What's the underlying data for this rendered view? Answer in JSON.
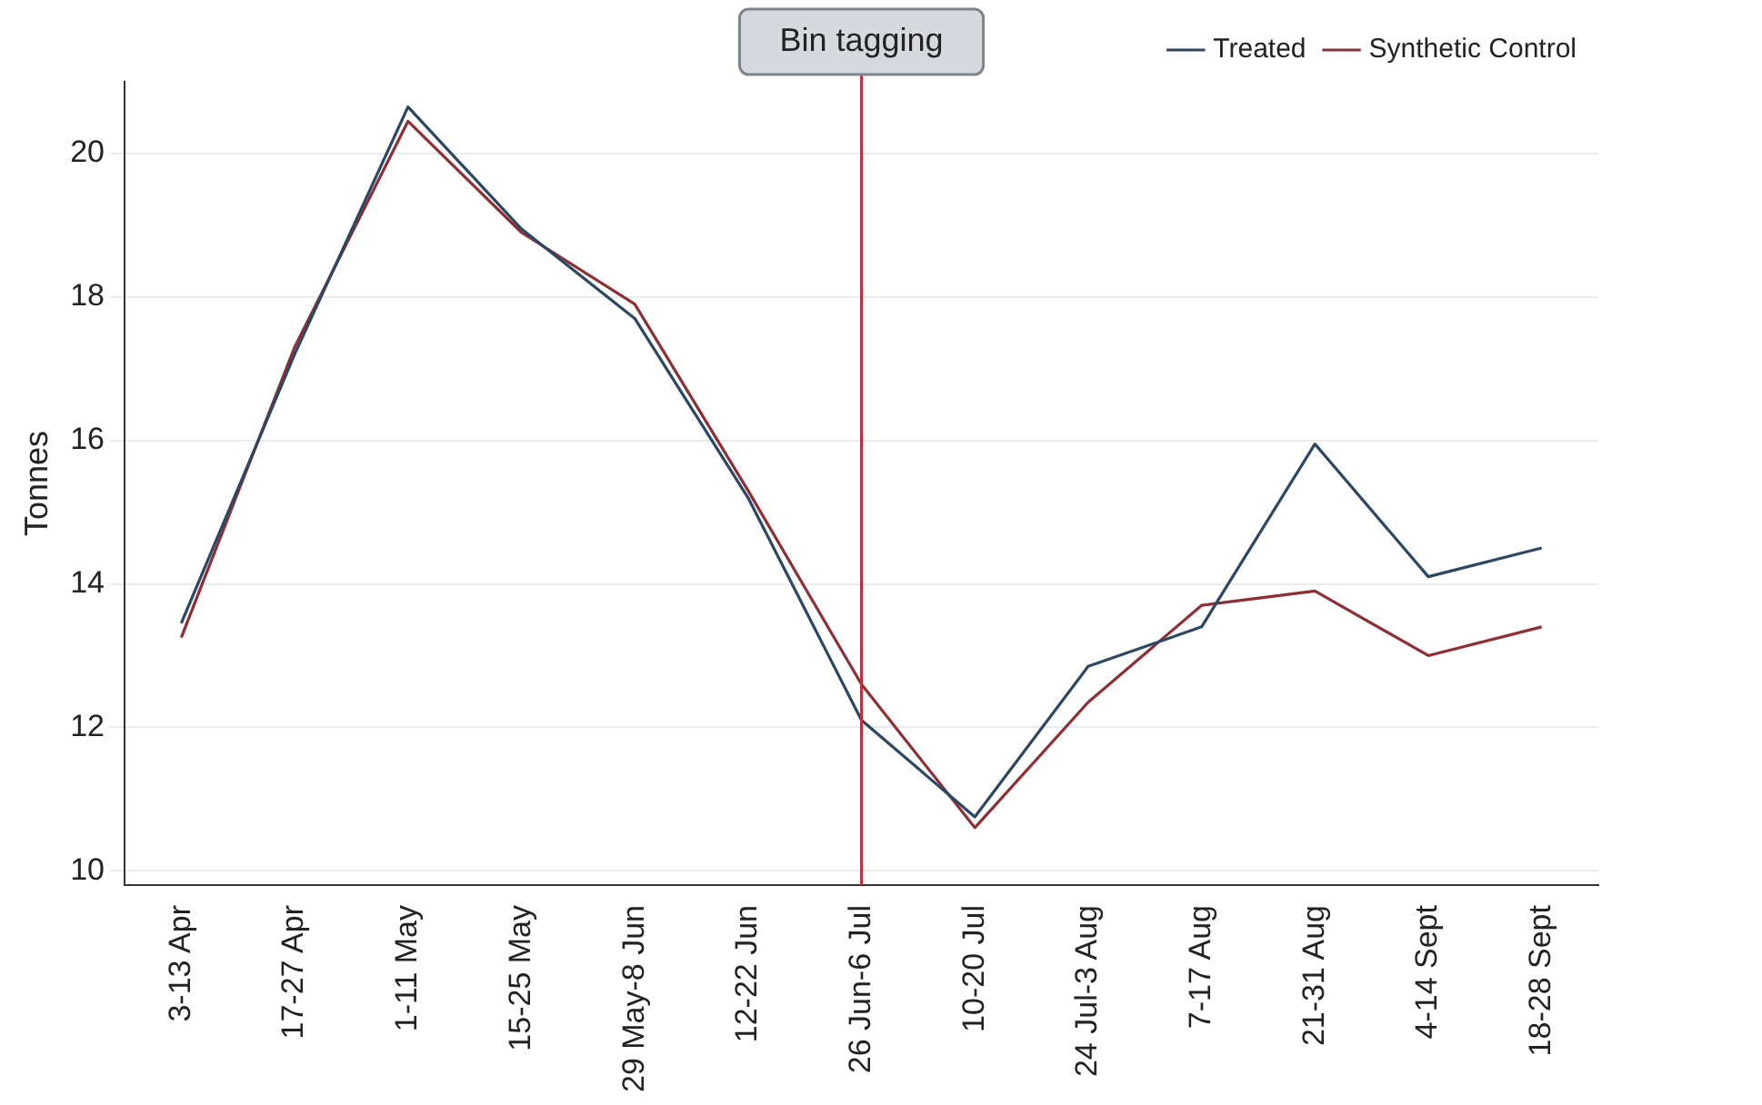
{
  "chart_data": {
    "type": "line",
    "ylabel": "Tonnes",
    "categories": [
      "3-13 Apr",
      "17-27 Apr",
      "1-11 May",
      "15-25 May",
      "29 May-8 Jun",
      "12-22 Jun",
      "26 Jun-6 Jul",
      "10-20 Jul",
      "24 Jul-3 Aug",
      "7-17 Aug",
      "21-31 Aug",
      "4-14 Sept",
      "18-28 Sept"
    ],
    "series": [
      {
        "name": "Treated",
        "color": "#2c4764",
        "values": [
          13.45,
          17.2,
          20.65,
          18.95,
          17.7,
          15.2,
          12.1,
          10.75,
          12.85,
          13.4,
          15.95,
          14.1,
          14.5
        ]
      },
      {
        "name": "Synthetic Control",
        "color": "#8e2f35",
        "values": [
          13.25,
          17.3,
          20.45,
          18.9,
          17.9,
          15.3,
          12.6,
          10.6,
          12.35,
          13.7,
          13.9,
          13.0,
          13.4
        ]
      }
    ],
    "ylim": [
      9.8,
      21
    ],
    "yticks": [
      10,
      12,
      14,
      16,
      18,
      20
    ],
    "grid": "y",
    "legend": "top right",
    "marker": "none",
    "line_style": "solid",
    "ref_lines": [
      {
        "axis": "x",
        "value": "26 Jun-6 Jul",
        "label": "Bin tagging",
        "color": "#c0303c"
      }
    ]
  }
}
